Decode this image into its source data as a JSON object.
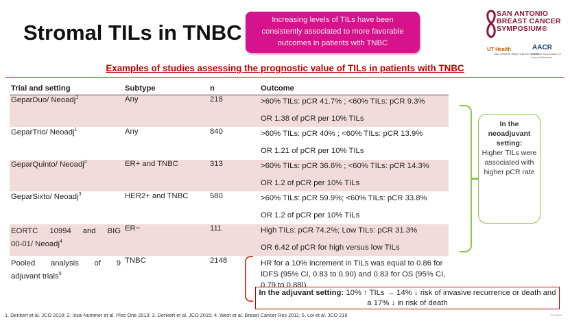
{
  "title": "Stromal TILs in TNBC",
  "callout": "Increasing levels of TILs have been consistently associated to more favorable outcomes in patients with TNBC",
  "logo": {
    "org_line1": "SAN ANTONIO",
    "org_line2": "BREAST CANCER",
    "org_line3": "SYMPOSIUM®",
    "ut": "UT Health",
    "ut_sub": "San Antonio Mays Cancer Center",
    "aacr": "AACR",
    "aacr_sub": "American Association for Cancer Research"
  },
  "subtitle": "Examples of studies assessing the prognostic value of TILs in patients with TNBC",
  "table": {
    "headers": [
      "Trial and setting",
      "Subtype",
      "n",
      "Outcome"
    ],
    "rows": [
      {
        "trial": "GeparDuo/ Neoadj",
        "ref": "1",
        "subtype": "Any",
        "n": "218",
        "outcome1": ">60% TILs: pCR 41.7% ; <60% TILs: pCR 9.3%",
        "outcome2": "OR 1.38 of pCR per 10% TILs"
      },
      {
        "trial": "GeparTrio/ Neoadj",
        "ref": "1",
        "subtype": "Any",
        "n": "840",
        "outcome1": ">60% TILs: pCR 40% ; <60% TILs: pCR 13.9%",
        "outcome2": "OR 1.21 of pCR per 10% TILs"
      },
      {
        "trial": "GeparQuinto/ Neoadj",
        "ref": "2",
        "subtype": "ER+ and TNBC",
        "n": "313",
        "outcome1": ">60% TILs: pCR 36.6% ; <60% TILs: pCR 14.3%",
        "outcome2": "OR 1.2 of pCR per 10% TILs"
      },
      {
        "trial": "GeparSixto/ Neoadj",
        "ref": "3",
        "subtype": "HER2+ and TNBC",
        "n": "580",
        "outcome1": ">60% TILs: pCR 59.9%; <60% TILs: pCR 33.8%",
        "outcome2": "OR 1.2 of pCR per 10% TILs"
      },
      {
        "trial_w1": "EORTC",
        "trial_w2": "10994",
        "trial_w3": "and",
        "trial_w4": "BIG",
        "trial_line2": "00-01/ Neoadj",
        "ref": "4",
        "subtype": "ER−",
        "n": "111",
        "outcome1": "High TILs: pCR 74.2%; Low TILs: pCR 31.3%",
        "outcome2": "OR 6.42 of pCR for high versus low TILs"
      },
      {
        "trial_w1": "Pooled",
        "trial_w2": "analysis",
        "trial_w3": "of",
        "trial_w4": "9",
        "trial_line2": "adjuvant trials",
        "ref": "5",
        "subtype": "TNBC",
        "n": "2148",
        "outcome": "HR for a 10% increment in TILs was equal to 0.86 for IDFS (95% CI, 0.83 to 0.90) and 0.83 for OS (95% CI, 0.79 to 0.88])"
      }
    ]
  },
  "neoadjuvant_box": {
    "heading": "In the neoadjuvant setting:",
    "body": "Higher TILs were associated with higher pCR rate"
  },
  "adjuvant_box": {
    "heading": "In the adjuvant setting:",
    "body": "10% ↑ TILs → 14% ↓ risk of invasive recurrence or death and a 17% ↓ in risk of death"
  },
  "references": "1. Denkert et al. JCO 2010; 2. Issa-Nummer et al. Plos One 2013; 3. Denkert et al. JCO 2015; 4. West et al. Breast Cancer Res 2011; 5. Loi et al. JCO 219",
  "slide_tag": "20190856",
  "colors": {
    "accent_pink": "#d6138c",
    "heading_red": "#c00000",
    "row_shade": "#f2dcdb",
    "bracket_green": "#8dc63f",
    "bracket_red": "#e2432b"
  }
}
